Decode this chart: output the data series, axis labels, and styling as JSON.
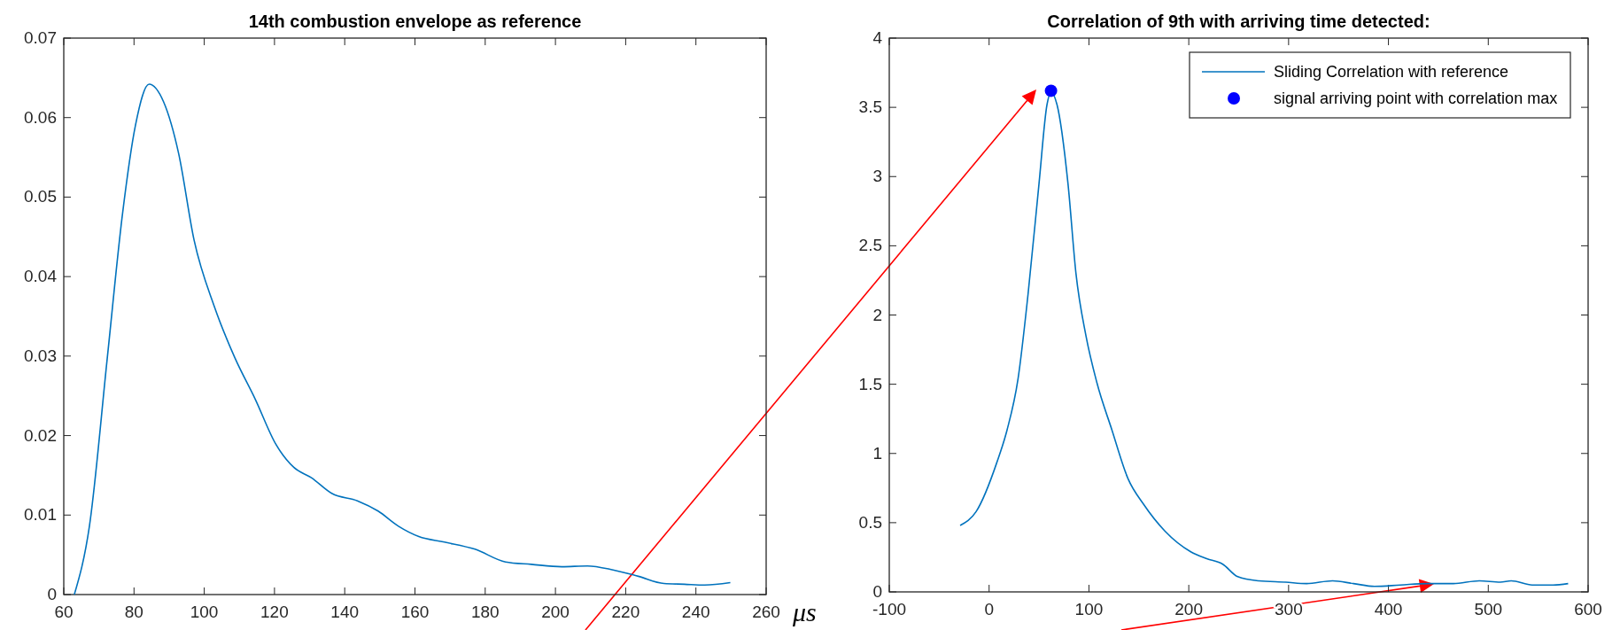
{
  "chart_data": [
    {
      "type": "line",
      "title": "14th combustion envelope as reference",
      "xlabel": "μs",
      "xlim": [
        60,
        260
      ],
      "xticks": [
        60,
        80,
        100,
        120,
        140,
        160,
        180,
        200,
        220,
        240,
        260
      ],
      "ylim": [
        0,
        0.07
      ],
      "yticks": [
        0,
        0.01,
        0.02,
        0.03,
        0.04,
        0.05,
        0.06,
        0.07
      ],
      "grid": false,
      "legend": false,
      "series": [
        {
          "color": "#0072bd",
          "x": [
            63,
            67.3,
            72.4,
            76.7,
            80.4,
            84.3,
            88.4,
            92.7,
            97.1,
            102.9,
            108.7,
            114.5,
            120.4,
            125.5,
            130.5,
            136.4,
            143.6,
            149.5,
            155.3,
            161.1,
            168.4,
            177.1,
            185.8,
            193.1,
            201.8,
            209.1,
            216.4,
            223.6,
            230.9,
            236.7,
            242.5,
            249.8
          ],
          "values": [
            0,
            0.0086,
            0.0298,
            0.0478,
            0.059,
            0.0642,
            0.062,
            0.0555,
            0.0446,
            0.0362,
            0.0298,
            0.0246,
            0.0189,
            0.016,
            0.0147,
            0.0127,
            0.0118,
            0.0105,
            0.0086,
            0.0073,
            0.0066,
            0.0057,
            0.0041,
            0.0038,
            0.0035,
            0.0036,
            0.0031,
            0.0023,
            0.0014,
            0.0013,
            0.0012,
            0.0015
          ]
        }
      ]
    },
    {
      "type": "line",
      "title": "Correlation of 9th with arriving time detected:",
      "xlim": [
        -100,
        600
      ],
      "xticks": [
        -100,
        0,
        100,
        200,
        300,
        400,
        500,
        600
      ],
      "ylim": [
        0,
        4
      ],
      "yticks": [
        0,
        0.5,
        1,
        1.5,
        2,
        2.5,
        3,
        3.5,
        4
      ],
      "grid": false,
      "legend": "top right",
      "series": [
        {
          "name": "Sliding Correlation with reference",
          "color": "#0072bd",
          "x": [
            -29,
            -13,
            8,
            18,
            29,
            39,
            50,
            58,
            62,
            68,
            79,
            87,
            97,
            108,
            123,
            139,
            155,
            176,
            202,
            218,
            234,
            249,
            270,
            297,
            318,
            344,
            365,
            386,
            412,
            439,
            465,
            491,
            512,
            523,
            544,
            565,
            580
          ],
          "values": [
            0.48,
            0.58,
            0.94,
            1.17,
            1.54,
            2.15,
            2.95,
            3.52,
            3.61,
            3.52,
            2.95,
            2.3,
            1.85,
            1.51,
            1.17,
            0.82,
            0.63,
            0.44,
            0.29,
            0.24,
            0.2,
            0.11,
            0.08,
            0.07,
            0.06,
            0.08,
            0.06,
            0.04,
            0.05,
            0.06,
            0.06,
            0.08,
            0.07,
            0.08,
            0.05,
            0.05,
            0.06
          ]
        },
        {
          "name": "signal arriving point with correlation max",
          "type": "scatter",
          "marker": "circle",
          "color": "#0000ff",
          "x": [
            62
          ],
          "values": [
            3.62
          ]
        }
      ]
    }
  ]
}
